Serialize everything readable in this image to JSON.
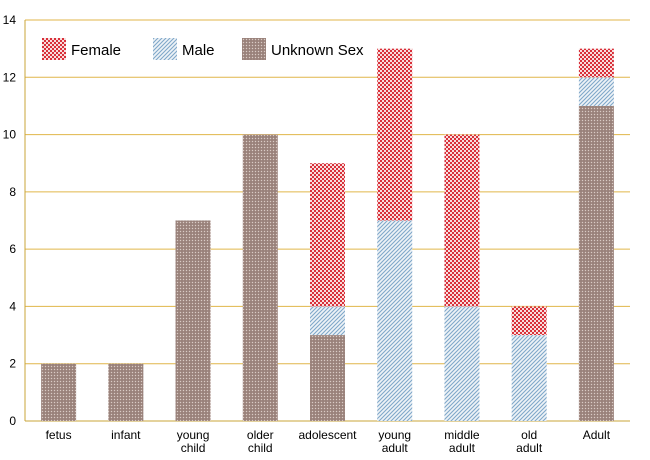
{
  "chart_data": {
    "type": "bar",
    "stacked": true,
    "categories": [
      "fetus",
      "infant",
      "young\nchild",
      "older\nchild",
      "adolescent",
      "young\nadult",
      "middle\nadult",
      "old\nadult",
      "Adult"
    ],
    "series": [
      {
        "name": "Unknown Sex",
        "values": [
          2,
          2,
          7,
          10,
          3,
          0,
          0,
          0,
          11
        ],
        "pattern": "brown-stipple"
      },
      {
        "name": "Male",
        "values": [
          0,
          0,
          0,
          0,
          1,
          7,
          4,
          3,
          1
        ],
        "pattern": "blue-diagonal"
      },
      {
        "name": "Female",
        "values": [
          0,
          0,
          0,
          0,
          5,
          6,
          6,
          1,
          1
        ],
        "pattern": "red-checker"
      }
    ],
    "legend_order": [
      "Female",
      "Male",
      "Unknown Sex"
    ],
    "legend_position": "top-left",
    "ylim": [
      0,
      14
    ],
    "yticks": [
      0,
      2,
      4,
      6,
      8,
      10,
      12,
      14
    ],
    "grid": true,
    "colors": {
      "grid": "#e0b64a",
      "unknown": "#a38b84",
      "male": "#7fa7c9",
      "female": "#d9303a"
    }
  }
}
